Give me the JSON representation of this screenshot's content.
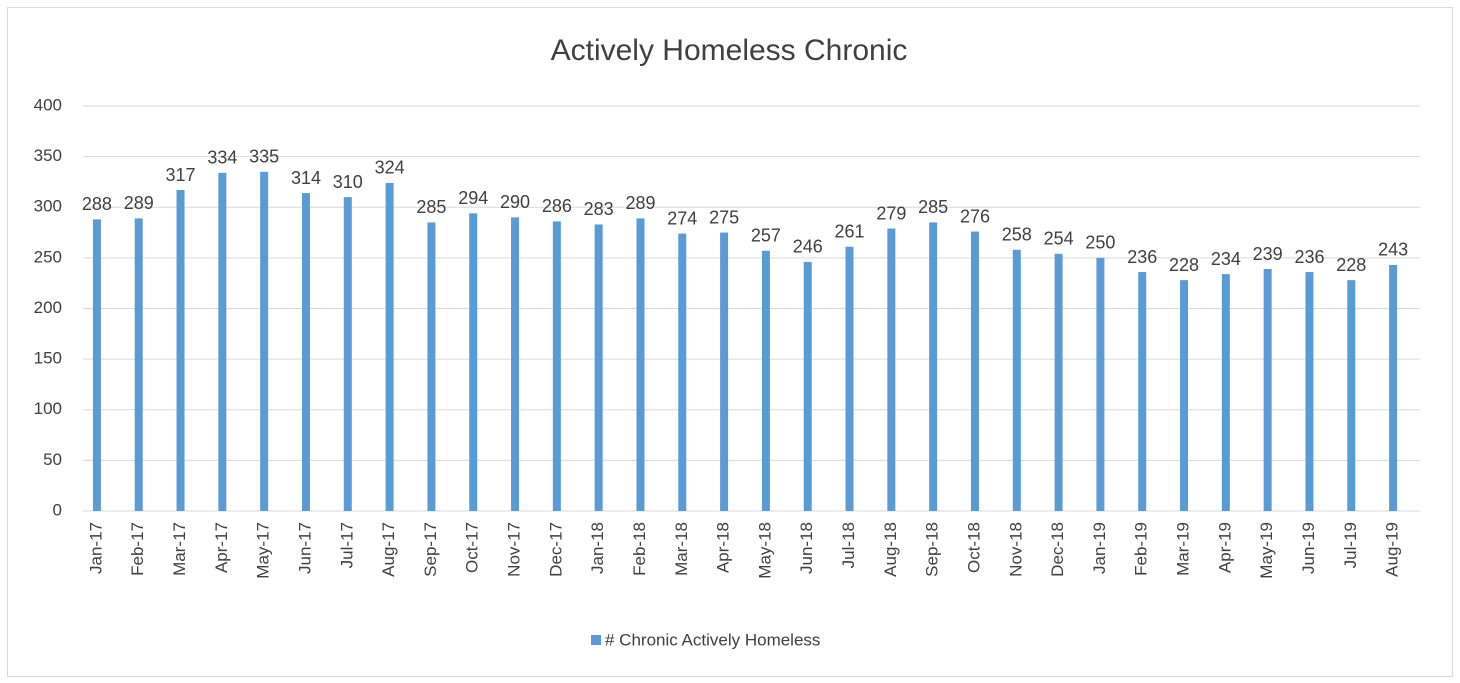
{
  "chart_data": {
    "type": "bar",
    "title": "Actively Homeless Chronic",
    "categories": [
      "Jan-17",
      "Feb-17",
      "Mar-17",
      "Apr-17",
      "May-17",
      "Jun-17",
      "Jul-17",
      "Aug-17",
      "Sep-17",
      "Oct-17",
      "Nov-17",
      "Dec-17",
      "Jan-18",
      "Feb-18",
      "Mar-18",
      "Apr-18",
      "May-18",
      "Jun-18",
      "Jul-18",
      "Aug-18",
      "Sep-18",
      "Oct-18",
      "Nov-18",
      "Dec-18",
      "Jan-19",
      "Feb-19",
      "Mar-19",
      "Apr-19",
      "May-19",
      "Jun-19",
      "Jul-19",
      "Aug-19"
    ],
    "series": [
      {
        "name": "# Chronic Actively Homeless",
        "color": "#5b9bd5",
        "values": [
          288,
          289,
          317,
          334,
          335,
          314,
          310,
          324,
          285,
          294,
          290,
          286,
          283,
          289,
          274,
          275,
          257,
          246,
          261,
          279,
          285,
          276,
          258,
          254,
          250,
          236,
          228,
          234,
          239,
          236,
          228,
          243
        ]
      }
    ],
    "ylim": [
      0,
      400
    ],
    "yticks": [
      0,
      50,
      100,
      150,
      200,
      250,
      300,
      350,
      400
    ],
    "grid": true,
    "legend": "bottom"
  }
}
